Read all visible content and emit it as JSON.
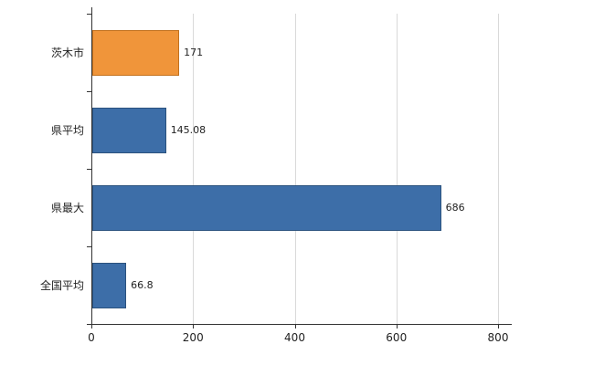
{
  "chart_data": {
    "type": "bar",
    "orientation": "horizontal",
    "title": "",
    "categories": [
      "茨木市",
      "県平均",
      "県最大",
      "全国平均"
    ],
    "values": [
      171,
      145.08,
      686,
      66.8
    ],
    "value_labels": [
      "171",
      "145.08",
      "686",
      "66.8"
    ],
    "bar_fills": [
      "#F0953A",
      "#3D6EA8",
      "#3D6EA8",
      "#3D6EA8"
    ],
    "bar_borders": [
      "#C2711E",
      "#2B527E",
      "#2B527E",
      "#2B527E"
    ],
    "x_tick_labels": [
      "0",
      "200",
      "400",
      "600",
      "800"
    ],
    "x_tick_values": [
      0,
      200,
      400,
      600,
      800
    ],
    "xlim": [
      0,
      800
    ],
    "grid": "vertical-gridlines-only",
    "legend": "none",
    "axis_color": "#333333",
    "gridline_color": "#d9d9d9",
    "background_color": "#ffffff"
  }
}
